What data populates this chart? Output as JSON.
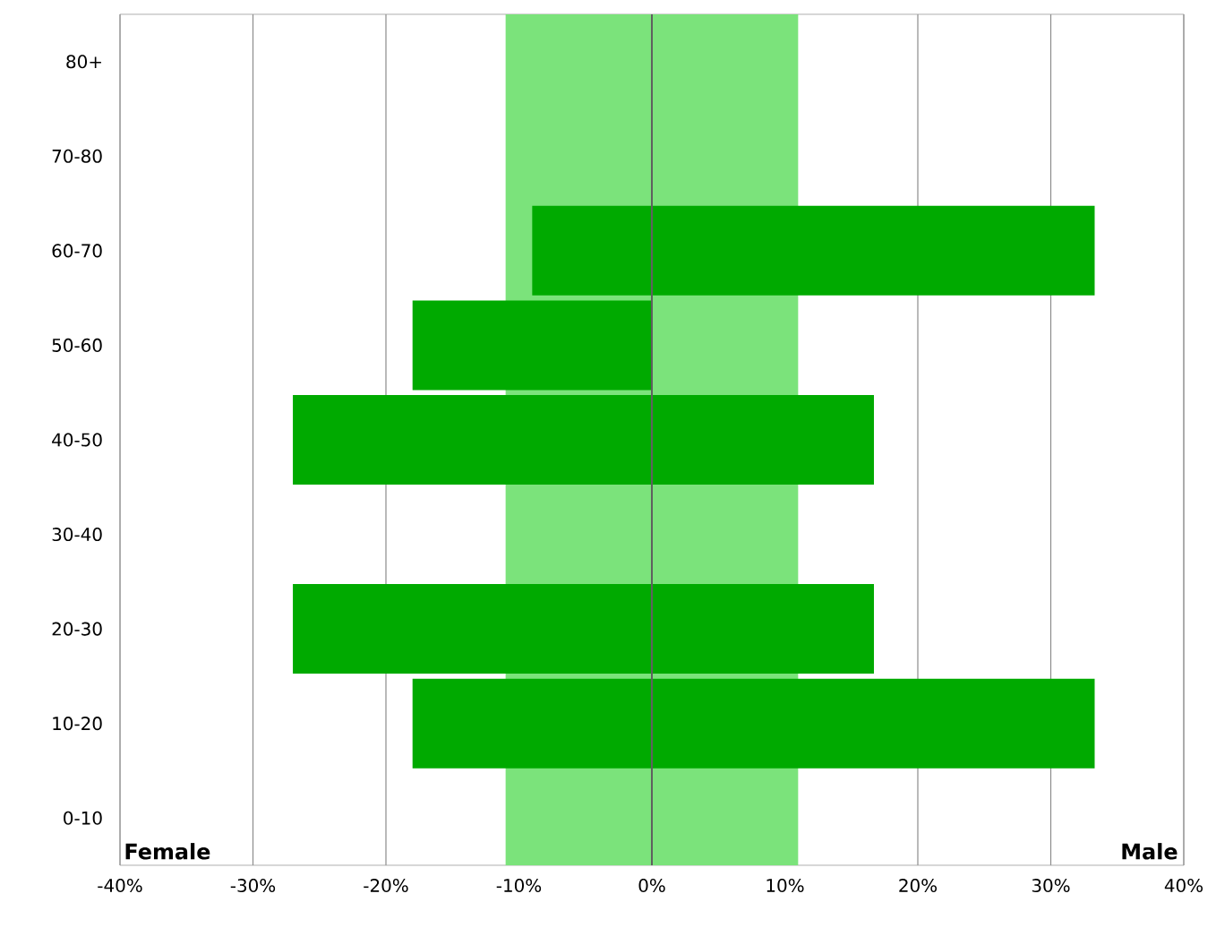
{
  "chart_data": {
    "type": "bar",
    "orientation": "horizontal",
    "stacked": true,
    "categories": [
      "80+",
      "70-80",
      "60-70",
      "50-60",
      "40-50",
      "30-40",
      "20-30",
      "10-20",
      "0-10"
    ],
    "series": [
      {
        "color": "#00aa00",
        "values": [
          null,
          null,
          -9,
          -18,
          -27,
          null,
          -27,
          -18,
          null
        ]
      },
      {
        "color": "#00aa00",
        "values": [
          null,
          null,
          33.3,
          null,
          16.7,
          null,
          16.7,
          33.3,
          null
        ]
      }
    ],
    "xlim": [
      -40,
      40
    ],
    "xticks": [
      {
        "value": -40,
        "label": "-40%"
      },
      {
        "value": -30,
        "label": "-30%"
      },
      {
        "value": -20,
        "label": "-20%"
      },
      {
        "value": -10,
        "label": "-10%"
      },
      {
        "value": 0,
        "label": "0%"
      },
      {
        "value": 10,
        "label": "10%"
      },
      {
        "value": 20,
        "label": "20%"
      },
      {
        "value": 30,
        "label": "30%"
      },
      {
        "value": 40,
        "label": "40%"
      }
    ],
    "grid": "x",
    "bands": [
      {
        "axis": "x",
        "from": -11,
        "to": 11,
        "color": "#7be37b"
      }
    ],
    "ref_lines": [
      {
        "axis": "x",
        "value": 0,
        "color": "#606060"
      }
    ],
    "annotations": [
      "Female",
      "Male"
    ]
  }
}
